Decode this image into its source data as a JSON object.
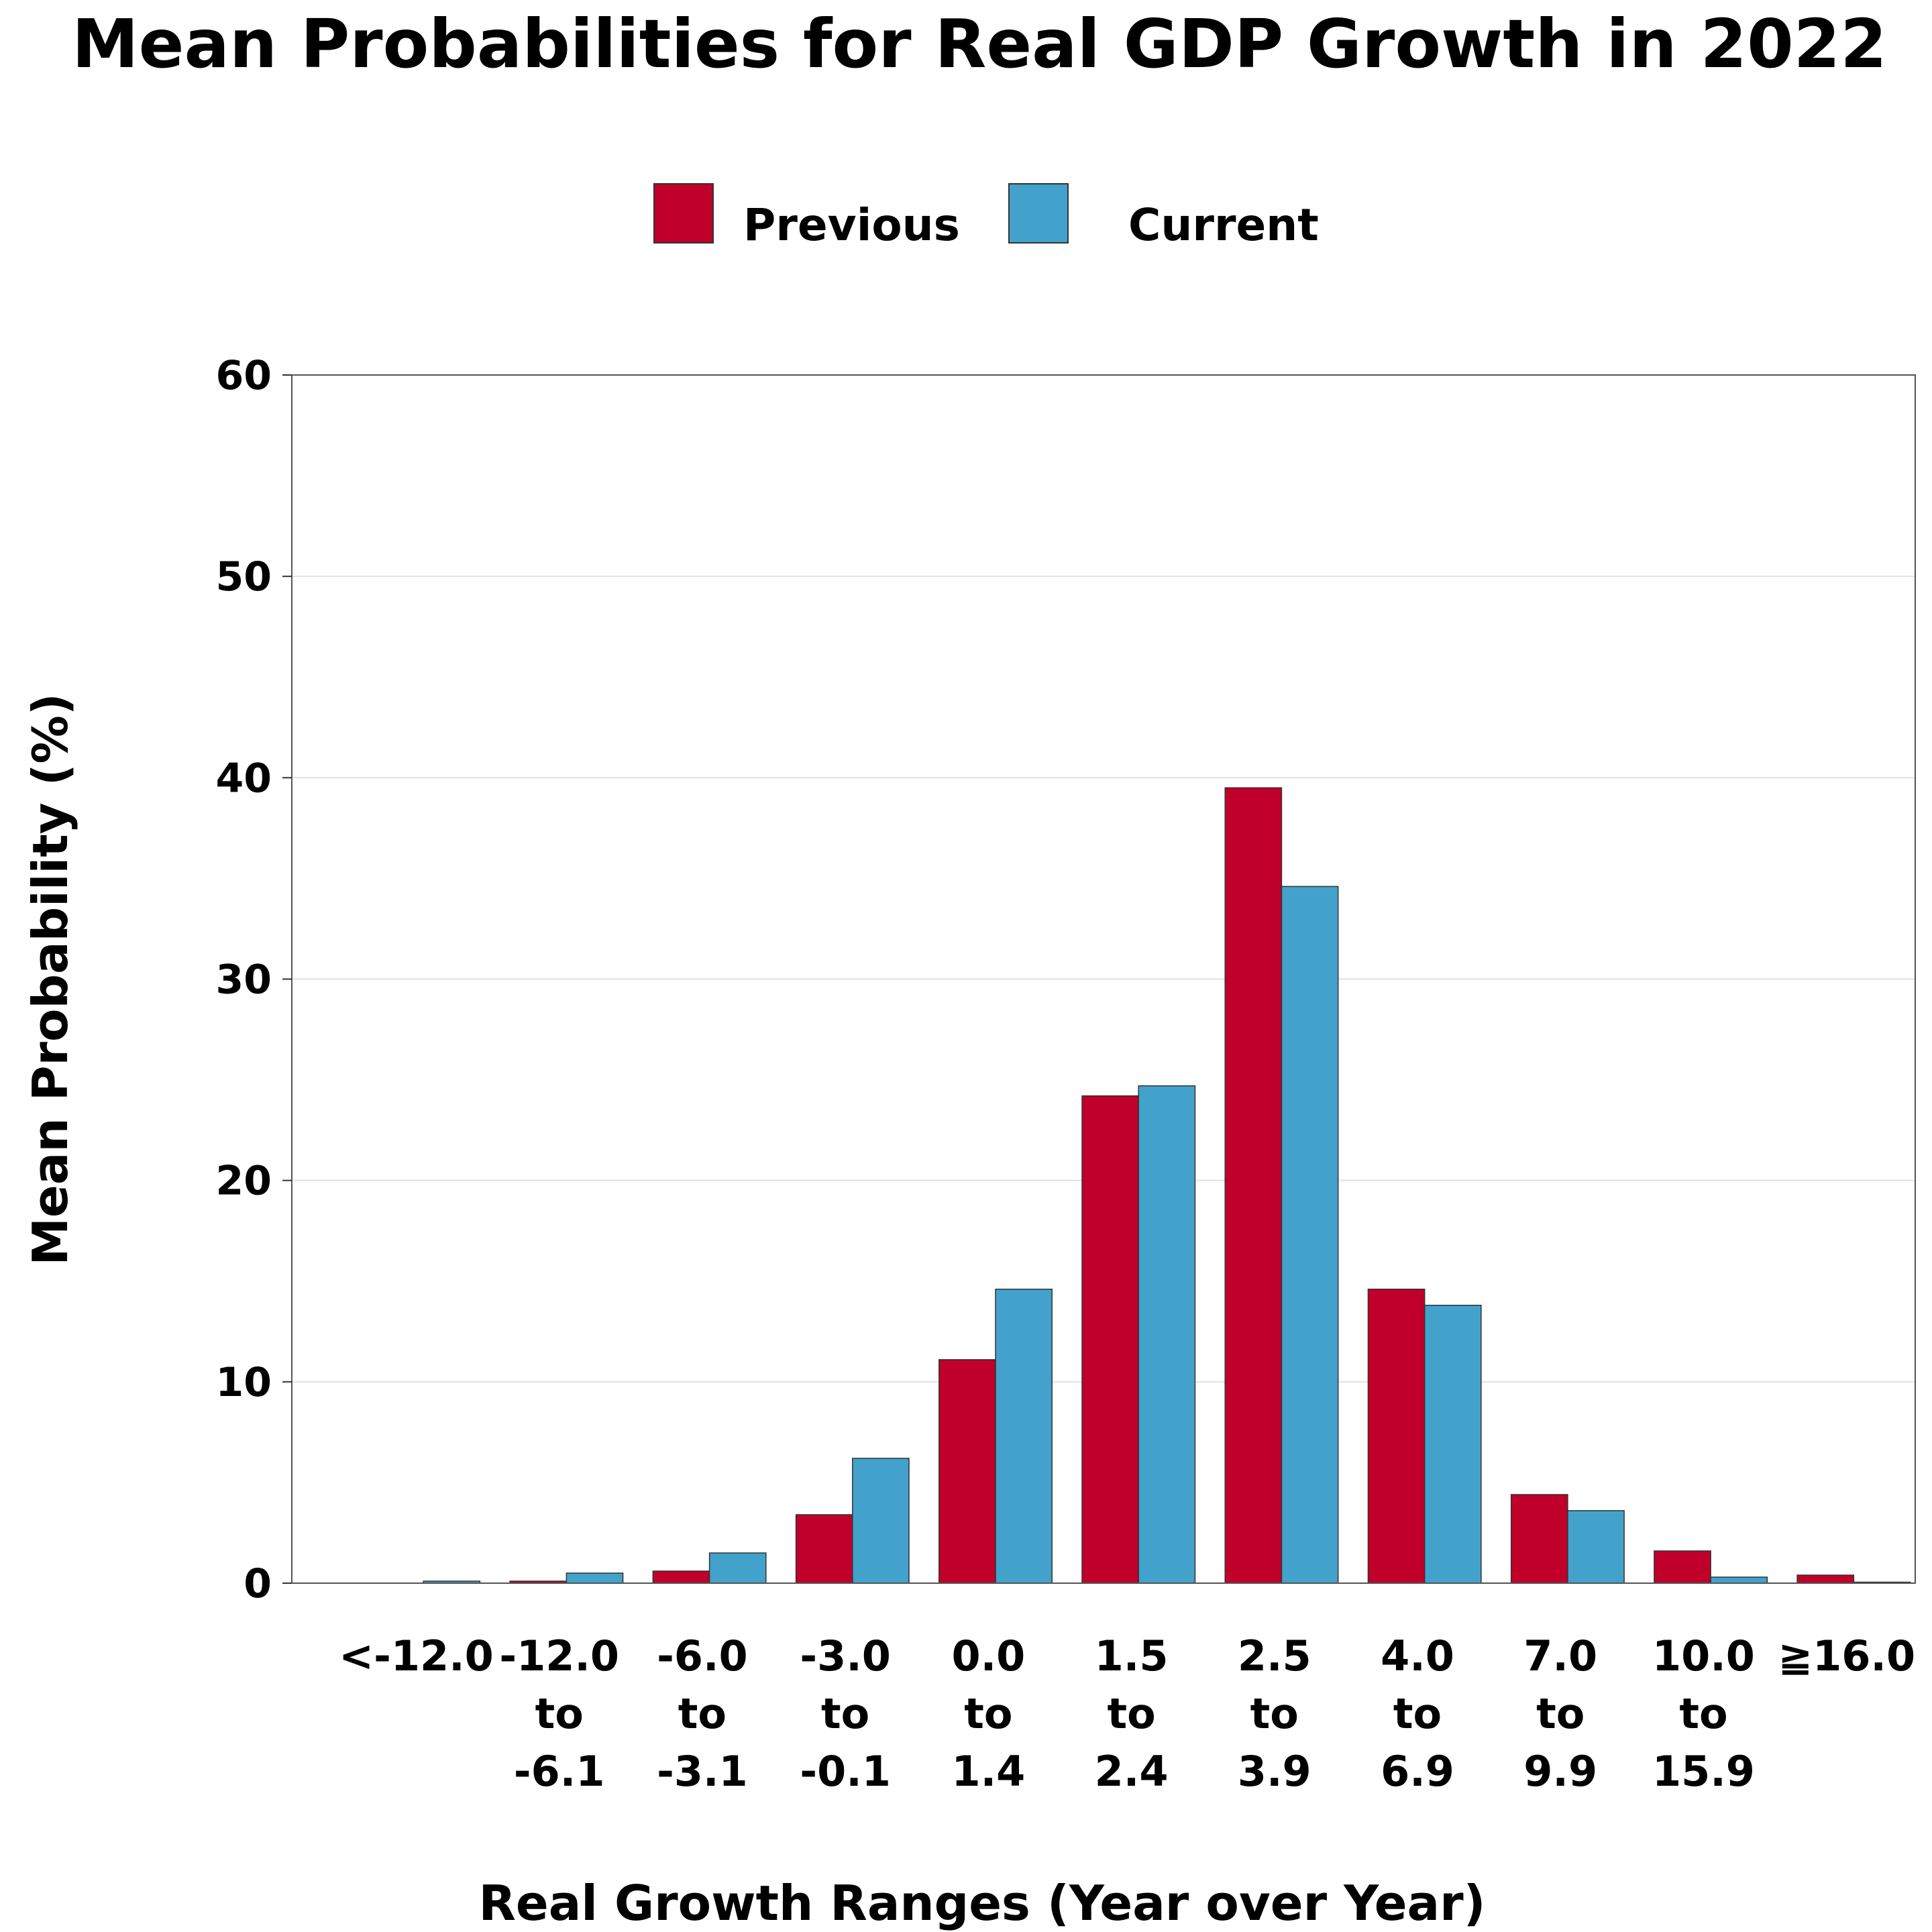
{
  "chart_data": {
    "type": "bar",
    "title": "Mean Probabilities for Real GDP Growth in 2022",
    "xlabel": "Real Growth Ranges (Year over Year)",
    "ylabel": "Mean Probability (%)",
    "ylim": [
      0,
      60
    ],
    "yticks": [
      "0",
      "10",
      "20",
      "30",
      "40",
      "50",
      "60"
    ],
    "grid": true,
    "legend_position": "top-center",
    "categories": [
      [
        "<-12.0"
      ],
      [
        "-12.0",
        "to",
        "-6.1"
      ],
      [
        "-6.0",
        "to",
        "-3.1"
      ],
      [
        "-3.0",
        "to",
        "-0.1"
      ],
      [
        "0.0",
        "to",
        "1.4"
      ],
      [
        "1.5",
        "to",
        "2.4"
      ],
      [
        "2.5",
        "to",
        "3.9"
      ],
      [
        "4.0",
        "to",
        "6.9"
      ],
      [
        "7.0",
        "to",
        "9.9"
      ],
      [
        "10.0",
        "to",
        "15.9"
      ],
      [
        "≧16.0"
      ]
    ],
    "series": [
      {
        "name": "Previous",
        "color": "#C0002A",
        "values": [
          0.0,
          0.1,
          0.6,
          3.4,
          11.1,
          24.2,
          39.5,
          14.6,
          4.4,
          1.6,
          0.4
        ]
      },
      {
        "name": "Current",
        "color": "#42A2CC",
        "values": [
          0.1,
          0.5,
          1.5,
          6.2,
          14.6,
          24.7,
          34.6,
          13.8,
          3.6,
          0.3,
          0.05
        ]
      }
    ]
  }
}
